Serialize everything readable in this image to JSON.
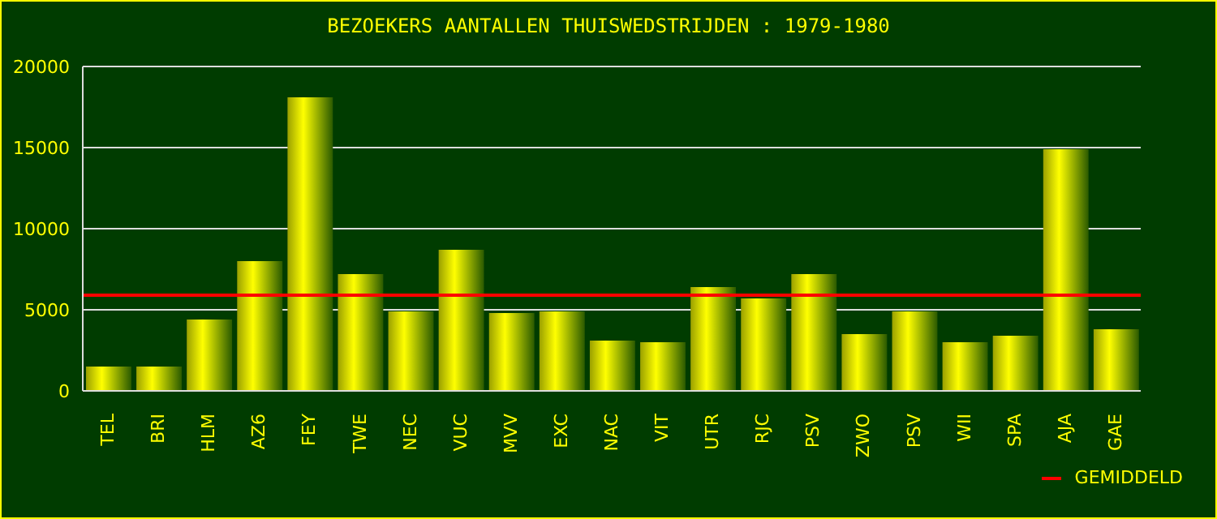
{
  "chart_data": {
    "type": "bar",
    "title": "BEZOEKERS AANTALLEN THUISWEDSTRIJDEN : 1979-1980",
    "categories": [
      "TEL",
      "BRI",
      "HLM",
      "AZ6",
      "FEY",
      "TWE",
      "NEC",
      "VUC",
      "MVV",
      "EXC",
      "NAC",
      "VIT",
      "UTR",
      "RJC",
      "PSV",
      "ZWO",
      "PSV",
      "WII",
      "SPA",
      "AJA",
      "GAE"
    ],
    "values": [
      1500,
      1500,
      4400,
      8000,
      18100,
      7200,
      4900,
      8700,
      4800,
      4900,
      3100,
      3000,
      6400,
      5700,
      7200,
      3500,
      4900,
      3000,
      3400,
      14900,
      3800
    ],
    "color": "#ffff00",
    "ylim": [
      0,
      20000
    ],
    "yticks": [
      0,
      5000,
      10000,
      15000,
      20000
    ],
    "grid": "y",
    "ref_lines": [
      {
        "axis": "y",
        "value": 5900,
        "label": "GEMIDDELD",
        "color": "#ff0000"
      }
    ],
    "legend": "bottom right"
  }
}
